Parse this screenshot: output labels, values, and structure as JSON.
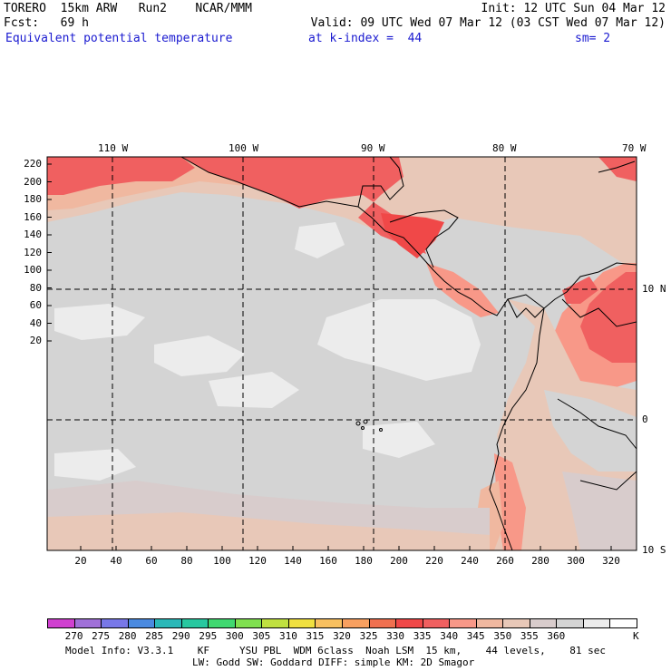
{
  "header": {
    "line1_left": "TORERO  15km ARW   Run2    NCAR/MMM",
    "line1_right": "Init: 12 UTC Sun 04 Mar 12",
    "line2_left": "Fcst:   69 h",
    "line2_right": "Valid: 09 UTC Wed 07 Mar 12 (03 CST Wed 07 Mar 12)",
    "line3_field": "Equivalent potential temperature",
    "line3_level": "at k-index =  44",
    "line3_smooth": "sm= 2"
  },
  "top_lon_labels": [
    "110 W",
    "100 W",
    "90 W",
    "80 W",
    "70 W"
  ],
  "right_lat_labels": [
    "10 N",
    "0",
    "10 S"
  ],
  "y_axis_labels": [
    "220",
    "200",
    "180",
    "160",
    "140",
    "120",
    "100",
    "80",
    "60",
    "40",
    "20"
  ],
  "x_axis_labels": [
    "20",
    "40",
    "60",
    "80",
    "100",
    "120",
    "140",
    "160",
    "180",
    "200",
    "220",
    "240",
    "260",
    "280",
    "300",
    "320"
  ],
  "colorbar": {
    "colors": [
      "#d040d0",
      "#a070d8",
      "#7878e8",
      "#4a8ae0",
      "#2ab8b8",
      "#28c8a0",
      "#40d870",
      "#80e050",
      "#c0e040",
      "#f0e040",
      "#f8c060",
      "#f8a060",
      "#f07050",
      "#f04848",
      "#f06060",
      "#f89888",
      "#f0b8a0",
      "#e8c8b8",
      "#d8cccc",
      "#d4d4d4",
      "#ececec",
      "#ffffff"
    ],
    "labels": [
      "270",
      "275",
      "280",
      "285",
      "290",
      "295",
      "300",
      "305",
      "310",
      "315",
      "320",
      "325",
      "330",
      "335",
      "340",
      "345",
      "350",
      "355",
      "360"
    ],
    "unit": "K"
  },
  "footer": {
    "line1": "Model Info: V3.3.1    KF     YSU PBL  WDM 6class  Noah LSM  15 km,    44 levels,    81 sec",
    "line2": "LW: Godd SW: Goddard DIFF: simple KM: 2D Smagor"
  },
  "map_colors": {
    "background_sea": "#d4d4d4",
    "light_patches": "#ececec",
    "warm_tan": "#e8c8b8",
    "tan": "#f0b8a0",
    "salmon": "#f89888",
    "red": "#f06060",
    "deep_red": "#f04848",
    "coast": "#000000",
    "grid": "#000000"
  }
}
